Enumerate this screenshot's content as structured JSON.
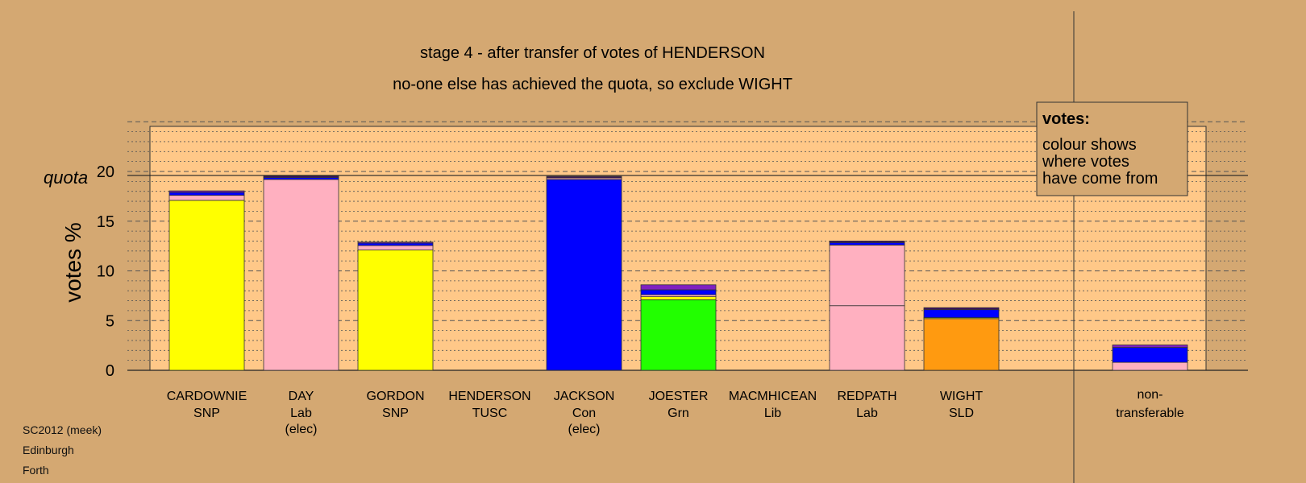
{
  "chart_data": {
    "type": "bar",
    "stacked": true,
    "title": "stage 4 - after transfer of votes of HENDERSON",
    "subtitle": "no-one else has achieved the quota, so exclude WIGHT",
    "ylabel": "votes %",
    "quota_label": "quota",
    "quota_value": 19.6,
    "ylim": [
      0,
      25
    ],
    "yticks": [
      "0",
      "5",
      "10",
      "15",
      "20"
    ],
    "grid": "dashed major lines every 5, dotted minor lines every 1",
    "legend": {
      "heading": "votes:",
      "lines": [
        "colour shows",
        "where votes",
        "have come from"
      ],
      "placement": "top-right"
    },
    "colors": {
      "snp": "#ffff00",
      "lab": "#ffb0c0",
      "con": "#0000ff",
      "grn": "#22ff00",
      "sld": "#ff9a10",
      "tusc": "#8020c0",
      "lib": "#ffb0c0",
      "cap_dark": "#3a1060",
      "background": "#d4a872",
      "plot_bg": "#ffc888"
    },
    "candidates": [
      {
        "name": "CARDOWNIE",
        "party": "SNP",
        "note": "",
        "segments": [
          {
            "value": 17.1,
            "color": "#ffff00"
          },
          {
            "value": 0.5,
            "color": "#ffb0c0"
          },
          {
            "value": 0.3,
            "color": "#0000ff"
          },
          {
            "value": 0.15,
            "color": "#8020c0"
          }
        ]
      },
      {
        "name": "DAY",
        "party": "Lab",
        "note": "(elec)",
        "segments": [
          {
            "value": 19.2,
            "color": "#ffb0c0"
          },
          {
            "value": 0.2,
            "color": "#0000ff"
          },
          {
            "value": 0.15,
            "color": "#3a1060"
          }
        ]
      },
      {
        "name": "GORDON",
        "party": "SNP",
        "note": "",
        "segments": [
          {
            "value": 12.1,
            "color": "#ffff00"
          },
          {
            "value": 0.45,
            "color": "#ffb0c0"
          },
          {
            "value": 0.25,
            "color": "#0000ff"
          },
          {
            "value": 0.1,
            "color": "#8020c0"
          }
        ]
      },
      {
        "name": "HENDERSON",
        "party": "TUSC",
        "note": "",
        "segments": []
      },
      {
        "value_note": "",
        "name": "JACKSON",
        "party": "Con",
        "note": "(elec)",
        "segments": [
          {
            "value": 19.2,
            "color": "#0000ff"
          },
          {
            "value": 0.15,
            "color": "#ffb0c0"
          },
          {
            "value": 0.15,
            "color": "#3a1060"
          }
        ]
      },
      {
        "name": "JOESTER",
        "party": "Grn",
        "note": "",
        "segments": [
          {
            "value": 7.1,
            "color": "#22ff00"
          },
          {
            "value": 0.3,
            "color": "#ffff00"
          },
          {
            "value": 0.2,
            "color": "#ffb0c0"
          },
          {
            "value": 0.5,
            "color": "#0000ff"
          },
          {
            "value": 0.5,
            "color": "#8020c0"
          }
        ]
      },
      {
        "name": "MACMHICEAN",
        "party": "Lib",
        "note": "",
        "segments": []
      },
      {
        "name": "REDPATH",
        "party": "Lab",
        "note": "",
        "segments": [
          {
            "value": 6.5,
            "color": "#ffb0c0"
          },
          {
            "value": 6.1,
            "color": "#ffb0c0"
          },
          {
            "value": 0.25,
            "color": "#0000ff"
          },
          {
            "value": 0.15,
            "color": "#3a1060"
          }
        ]
      },
      {
        "name": "WIGHT",
        "party": "SLD",
        "note": "",
        "segments": [
          {
            "value": 5.2,
            "color": "#ff9a10"
          },
          {
            "value": 0.1,
            "color": "#ffff00"
          },
          {
            "value": 0.8,
            "color": "#0000ff"
          },
          {
            "value": 0.2,
            "color": "#3a1060"
          }
        ]
      }
    ],
    "nontransferable": {
      "line1": "non-",
      "line2": "transferable",
      "segments": [
        {
          "value": 0.8,
          "color": "#ffb0c0"
        },
        {
          "value": 1.5,
          "color": "#0000ff"
        },
        {
          "value": 0.25,
          "color": "#8020c0"
        }
      ]
    }
  },
  "footer": {
    "line1": "SC2012 (meek)",
    "line2": "Edinburgh",
    "line3": "Forth"
  }
}
